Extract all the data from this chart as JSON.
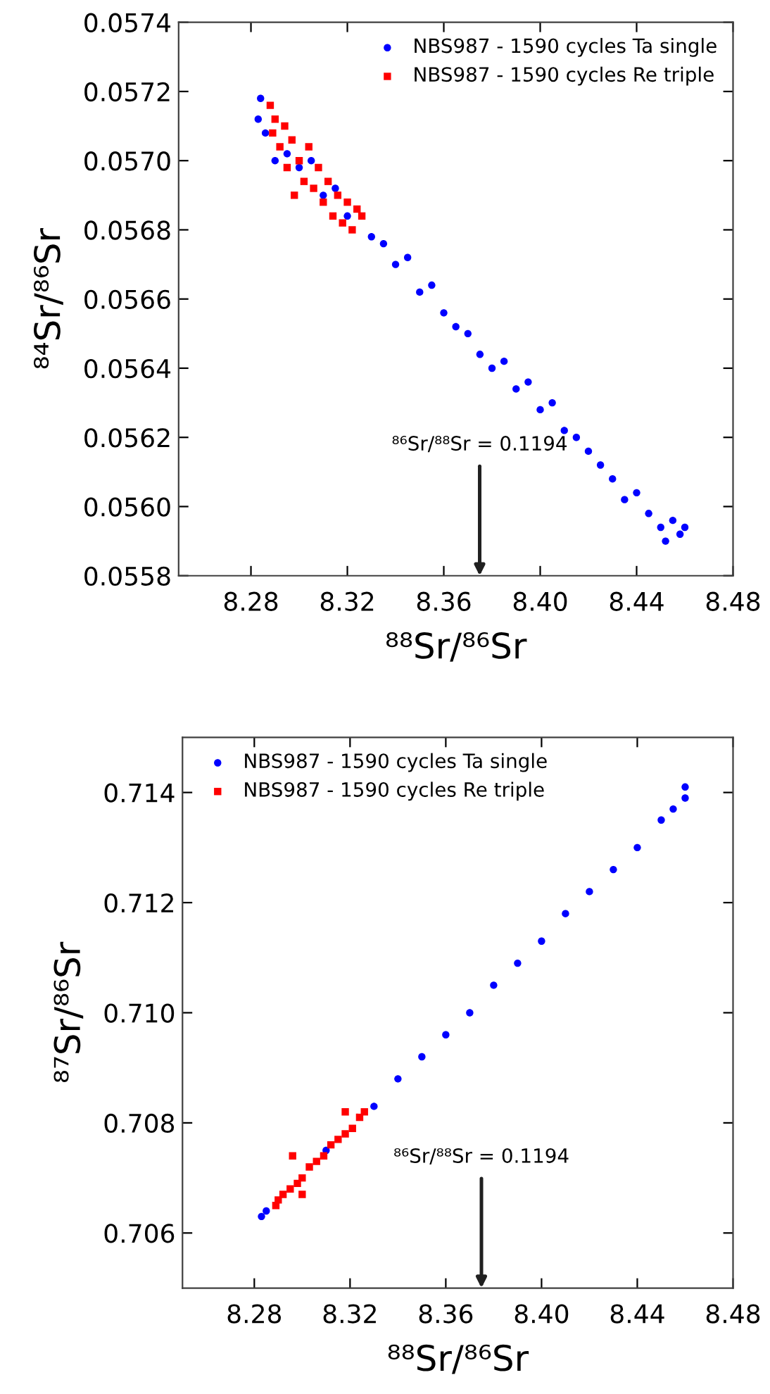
{
  "chart_data": [
    {
      "type": "scatter",
      "xlabel": "⁸⁸Sr/⁸⁶Sr",
      "ylabel": "⁸⁴Sr/⁸⁶Sr",
      "xlim": [
        8.25,
        8.48
      ],
      "xticks": [
        8.28,
        8.32,
        8.36,
        {
          "value": 8.4,
          "label": "8.40"
        },
        8.44,
        8.48
      ],
      "ylim": [
        0.0558,
        0.0574
      ],
      "yticks": [
        0.0558,
        {
          "value": 0.056,
          "label": "0.0560"
        },
        0.0562,
        0.0564,
        0.0566,
        0.0568,
        {
          "value": 0.057,
          "label": "0.0570"
        },
        0.0572,
        0.0574
      ],
      "legend": "top right",
      "grid": false,
      "annotations": [
        "⁸⁶Sr/⁸⁸Sr = 0.1194"
      ],
      "series": [
        {
          "name": "NBS987 - 1590 cycles Ta single",
          "color": "#0000ff",
          "marker": "circle",
          "x": [
            8.283,
            8.284,
            8.286,
            8.288,
            8.29,
            8.295,
            8.3,
            8.305,
            8.31,
            8.315,
            8.32,
            8.325,
            8.33,
            8.335,
            8.34,
            8.345,
            8.35,
            8.355,
            8.36,
            8.365,
            8.37,
            8.375,
            8.38,
            8.385,
            8.39,
            8.395,
            8.4,
            8.405,
            8.41,
            8.415,
            8.42,
            8.425,
            8.43,
            8.435,
            8.44,
            8.445,
            8.45,
            8.452,
            8.455,
            8.458,
            8.46
          ],
          "values": [
            0.05712,
            0.05718,
            0.05708,
            null,
            0.057,
            0.05702,
            0.05698,
            0.057,
            0.0569,
            0.05692,
            0.05684,
            null,
            0.05678,
            0.05676,
            0.0567,
            0.05672,
            0.05662,
            0.05664,
            0.05656,
            0.05652,
            0.0565,
            0.05644,
            0.0564,
            0.05642,
            0.05634,
            0.05636,
            0.05628,
            0.0563,
            0.05622,
            0.0562,
            0.05616,
            0.05612,
            0.05608,
            0.05602,
            0.05604,
            0.05598,
            0.05594,
            0.0559,
            0.05596,
            0.05592,
            0.05594
          ]
        },
        {
          "name": "NBS987 - 1590 cycles Re triple",
          "color": "#ff0000",
          "marker": "square",
          "x": [
            8.288,
            8.289,
            8.29,
            8.292,
            8.294,
            8.295,
            8.297,
            8.3,
            8.302,
            8.304,
            8.306,
            8.308,
            8.31,
            8.312,
            8.314,
            8.316,
            8.318,
            8.32,
            8.322,
            8.324,
            8.326,
            8.298
          ],
          "values": [
            0.05716,
            0.05708,
            0.05712,
            0.05704,
            0.0571,
            0.05698,
            0.05706,
            0.057,
            0.05694,
            0.05704,
            0.05692,
            0.05698,
            0.05688,
            0.05694,
            0.05684,
            0.0569,
            0.05682,
            0.05688,
            0.0568,
            0.05686,
            0.05684,
            0.0569
          ]
        }
      ]
    },
    {
      "type": "scatter",
      "xlabel": "⁸⁸Sr/⁸⁶Sr",
      "ylabel": "⁸⁷Sr/⁸⁶Sr",
      "xlim": [
        8.25,
        8.48
      ],
      "xticks": [
        8.28,
        8.32,
        8.36,
        {
          "value": 8.4,
          "label": "8.40"
        },
        8.44,
        8.48
      ],
      "ylim": [
        0.705,
        0.715
      ],
      "yticks": [
        0.706,
        0.708,
        {
          "value": 0.71,
          "label": "0.710"
        },
        0.712,
        0.714
      ],
      "legend": "top left",
      "grid": false,
      "annotations": [
        "⁸⁶Sr/⁸⁸Sr = 0.1194"
      ],
      "series": [
        {
          "name": "NBS987 - 1590 cycles Ta single",
          "color": "#0000ff",
          "marker": "circle",
          "x": [
            8.283,
            8.285,
            8.29,
            8.3,
            8.31,
            8.32,
            8.33,
            8.34,
            8.35,
            8.36,
            8.37,
            8.38,
            8.39,
            8.4,
            8.41,
            8.42,
            8.43,
            8.44,
            8.45,
            8.455,
            8.46,
            8.46
          ],
          "values": [
            0.7063,
            0.7064,
            null,
            null,
            0.7075,
            null,
            0.7083,
            0.7088,
            0.7092,
            0.7096,
            0.71,
            0.7105,
            0.7109,
            0.7113,
            0.7118,
            0.7122,
            0.7126,
            0.713,
            0.7135,
            0.7137,
            0.7139,
            0.7141
          ]
        },
        {
          "name": "NBS987 - 1590 cycles Re triple",
          "color": "#ff0000",
          "marker": "square",
          "x": [
            8.289,
            8.29,
            8.292,
            8.295,
            8.298,
            8.3,
            8.303,
            8.306,
            8.309,
            8.312,
            8.315,
            8.318,
            8.321,
            8.324,
            8.326,
            8.296,
            8.318,
            8.3
          ],
          "values": [
            0.7065,
            0.7066,
            0.7067,
            0.7068,
            0.7069,
            0.707,
            0.7072,
            0.7073,
            0.7074,
            0.7076,
            0.7077,
            0.7078,
            0.7079,
            0.7081,
            0.7082,
            0.7074,
            0.7082,
            0.7067
          ]
        }
      ]
    }
  ]
}
